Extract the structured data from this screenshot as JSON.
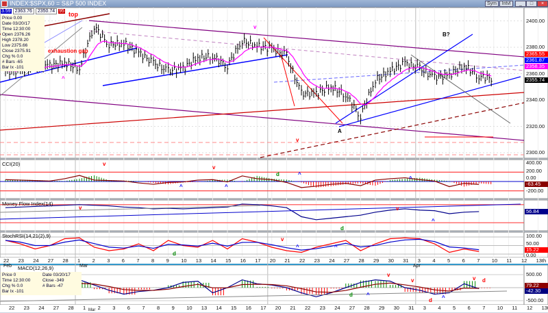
{
  "window": {
    "title": "INDEX:$SPX,60 = S&P 500 INDEX",
    "controls": [
      "Sym",
      "Intvl",
      "minimize",
      "restore",
      "close"
    ]
  },
  "toolbar": {
    "v1": "3.59",
    "v2": "2363.76",
    "v3": "2350.74",
    "v4": "95"
  },
  "info_panel": [
    [
      "Price",
      "0.00"
    ],
    [
      "Date",
      "03/20/17"
    ],
    [
      "Time",
      "12:30:00"
    ],
    [
      "Open",
      "2376.26"
    ],
    [
      "High",
      "2378.20"
    ],
    [
      "Low",
      "2375.66"
    ],
    [
      "Close",
      "2375.91"
    ],
    [
      "Chg %",
      "0.0"
    ],
    [
      "# Bars",
      "-65"
    ],
    [
      "Bar Ix",
      "-101"
    ]
  ],
  "macd_info_panel": [
    [
      "Price",
      "0"
    ],
    [
      "Date",
      "03/20/17"
    ],
    [
      "Time",
      "12:30:00"
    ],
    [
      "Close",
      "-349"
    ],
    [
      "Chg %",
      "0.0"
    ],
    [
      "# Bars",
      "-47"
    ],
    [
      "Bar Ix",
      "-101"
    ]
  ],
  "annotations": {
    "top": "top",
    "gap": "exhaustion gap",
    "a": "A",
    "b": "B?",
    "v": "v",
    "up": "^",
    "d": "d"
  },
  "colors": {
    "price": "#000000",
    "ma_fast": "#ff00ff",
    "trend_blue": "#0000ff",
    "trend_red": "#ff0000",
    "channel_purple": "#800080",
    "dark_red": "#8b0000",
    "hist_up": "#008000",
    "hist_down": "#ff0000"
  },
  "chart_data": [
    {
      "type": "line",
      "title": "INDEX:$SPX,60 = S&P 500 INDEX",
      "interval": "60 min",
      "x": [
        "Feb 22",
        "23",
        "24",
        "27",
        "28",
        "Mar 1",
        "2",
        "3",
        "6",
        "7",
        "8",
        "9",
        "10",
        "13",
        "14",
        "15",
        "16",
        "17",
        "20",
        "21",
        "22",
        "23",
        "24",
        "27",
        "28",
        "29",
        "30",
        "31",
        "Apr 3",
        "4",
        "5",
        "6",
        "7"
      ],
      "close": [
        2362,
        2365,
        2366,
        2368,
        2364,
        2396,
        2382,
        2383,
        2376,
        2368,
        2362,
        2364,
        2372,
        2373,
        2366,
        2385,
        2381,
        2379,
        2374,
        2345,
        2345,
        2350,
        2344,
        2328,
        2355,
        2362,
        2368,
        2364,
        2357,
        2359,
        2366,
        2358,
        2356
      ],
      "ylim": [
        2295,
        2410
      ],
      "yticks": [
        "2400.00",
        "2380.00",
        "2360.00",
        "2340.00",
        "2320.00",
        "2300.00"
      ],
      "last_values": [
        {
          "label": "2365.55",
          "color": "#ff0000"
        },
        {
          "label": "2361.87",
          "color": "#0000ff"
        },
        {
          "label": "2358.35",
          "color": "#ff00ff"
        },
        {
          "label": "2355.74",
          "color": "#000000"
        }
      ]
    },
    {
      "type": "bar",
      "title": "CCI(20)",
      "values": [
        40,
        30,
        20,
        10,
        60,
        130,
        30,
        20,
        10,
        -30,
        -60,
        -20,
        -10,
        30,
        40,
        -10,
        120,
        60,
        40,
        -20,
        -130,
        -100,
        -60,
        -40,
        -90,
        30,
        60,
        80,
        40,
        10,
        -110,
        -40,
        -63
      ],
      "yticks": [
        "400.00",
        "200.00",
        "0.00",
        "-200.00"
      ],
      "last": "-63.45"
    },
    {
      "type": "line",
      "title": "Money Flow Index(14)",
      "values": [
        70,
        72,
        74,
        76,
        78,
        80,
        78,
        76,
        72,
        70,
        66,
        68,
        66,
        68,
        70,
        72,
        82,
        80,
        76,
        70,
        40,
        30,
        35,
        40,
        45,
        55,
        62,
        66,
        62,
        60,
        50,
        55,
        57
      ],
      "last": "56.84"
    },
    {
      "type": "line",
      "title": "StochRSI(14,21(2),9)",
      "values": [
        80,
        60,
        30,
        50,
        90,
        95,
        40,
        20,
        30,
        60,
        20,
        80,
        50,
        40,
        80,
        30,
        90,
        70,
        40,
        20,
        10,
        40,
        60,
        80,
        20,
        60,
        90,
        95,
        90,
        60,
        10,
        30,
        15
      ],
      "yticks": [
        "100.00",
        "50.00",
        "0.00"
      ],
      "last": "15.22"
    },
    {
      "type": "line",
      "title": "MACD(12,26,9)",
      "values": [
        -100,
        -50,
        0,
        50,
        200,
        300,
        100,
        -100,
        -250,
        -150,
        -100,
        0,
        200,
        250,
        -200,
        0,
        300,
        150,
        100,
        0,
        -200,
        -350,
        -200,
        0,
        200,
        300,
        250,
        0,
        -100,
        -250,
        -200,
        150,
        -42
      ],
      "yticks": [
        "500.00",
        "-500.00"
      ],
      "last_values": [
        {
          "label": "79.22",
          "color": "#8b0000"
        },
        {
          "label": "-42.30",
          "color": "#000080"
        }
      ]
    }
  ],
  "x_axis_labels": [
    "22",
    "23",
    "24",
    "27",
    "28",
    "1",
    "2",
    "3",
    "6",
    "7",
    "8",
    "9",
    "10",
    "13",
    "14",
    "15",
    "16",
    "17",
    "20",
    "21",
    "22",
    "23",
    "24",
    "27",
    "28",
    "29",
    "30",
    "31",
    "3",
    "4",
    "5",
    "6",
    "7",
    "10",
    "11",
    "12",
    "13th"
  ],
  "month_labels": {
    "feb": "Feb",
    "mar": "Mar",
    "apr": "Apr"
  }
}
